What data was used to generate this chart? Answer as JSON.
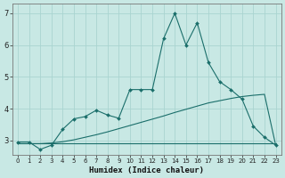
{
  "xlabel": "Humidex (Indice chaleur)",
  "bg_color": "#c8e8e4",
  "grid_color": "#aad4d0",
  "line_color": "#1a6e6a",
  "x": [
    0,
    1,
    2,
    3,
    4,
    5,
    6,
    7,
    8,
    9,
    10,
    11,
    12,
    13,
    14,
    15,
    16,
    17,
    18,
    19,
    20,
    21,
    22,
    23
  ],
  "y_main": [
    2.95,
    2.95,
    2.72,
    2.85,
    3.35,
    3.68,
    3.75,
    3.95,
    3.8,
    3.7,
    4.6,
    4.6,
    4.6,
    6.2,
    7.0,
    6.0,
    6.7,
    5.45,
    4.85,
    4.6,
    4.3,
    3.45,
    3.1,
    2.85
  ],
  "y_flat": [
    2.9,
    2.9,
    2.9,
    2.9,
    2.9,
    2.9,
    2.9,
    2.9,
    2.9,
    2.9,
    2.9,
    2.9,
    2.9,
    2.9,
    2.9,
    2.9,
    2.9,
    2.9,
    2.9,
    2.9,
    2.9,
    2.9,
    2.9,
    2.9
  ],
  "y_slope": [
    2.9,
    2.9,
    2.9,
    2.92,
    2.96,
    3.02,
    3.1,
    3.18,
    3.27,
    3.37,
    3.47,
    3.57,
    3.67,
    3.77,
    3.88,
    3.98,
    4.08,
    4.18,
    4.25,
    4.32,
    4.38,
    4.42,
    4.45,
    2.85
  ],
  "ylim": [
    2.55,
    7.3
  ],
  "yticks": [
    3,
    4,
    5,
    6,
    7
  ],
  "xlim": [
    -0.5,
    23.5
  ],
  "xticks": [
    0,
    1,
    2,
    3,
    4,
    5,
    6,
    7,
    8,
    9,
    10,
    11,
    12,
    13,
    14,
    15,
    16,
    17,
    18,
    19,
    20,
    21,
    22,
    23
  ]
}
